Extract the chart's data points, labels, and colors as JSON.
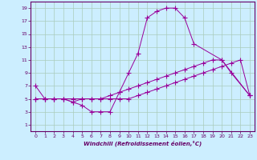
{
  "xlabel": "Windchill (Refroidissement éolien,°C)",
  "bg_color": "#cceeff",
  "line_color": "#990099",
  "grid_color": "#aaccbb",
  "xlim": [
    -0.5,
    23.5
  ],
  "ylim": [
    0,
    20
  ],
  "xticks": [
    0,
    1,
    2,
    3,
    4,
    5,
    6,
    7,
    8,
    9,
    10,
    11,
    12,
    13,
    14,
    15,
    16,
    17,
    18,
    19,
    20,
    21,
    22,
    23
  ],
  "yticks": [
    1,
    3,
    5,
    7,
    9,
    11,
    13,
    15,
    17,
    19
  ],
  "curve1_x": [
    0,
    1,
    2,
    3,
    4,
    5,
    6,
    7,
    8,
    9,
    10,
    11,
    12,
    13,
    14,
    15,
    16,
    17,
    20,
    21,
    23
  ],
  "curve1_y": [
    7,
    5,
    5,
    5,
    4.5,
    4,
    3,
    3,
    3,
    6,
    9,
    12,
    17.5,
    18.5,
    19,
    19,
    17.5,
    13.5,
    11,
    9,
    5.5
  ],
  "curve2_x": [
    0,
    1,
    2,
    3,
    4,
    5,
    6,
    7,
    8,
    9,
    10,
    11,
    12,
    13,
    14,
    15,
    16,
    17,
    18,
    19,
    20,
    23
  ],
  "curve2_y": [
    5,
    5,
    5,
    5,
    4.5,
    5,
    5,
    5,
    5.5,
    6,
    6.5,
    7,
    7.5,
    8,
    8.5,
    9,
    9.5,
    10,
    10.5,
    11,
    11,
    5.5
  ],
  "curve3_x": [
    0,
    1,
    2,
    3,
    4,
    5,
    6,
    7,
    8,
    9,
    10,
    11,
    12,
    13,
    14,
    15,
    16,
    17,
    18,
    19,
    20,
    21,
    22,
    23
  ],
  "curve3_y": [
    5,
    5,
    5,
    5,
    5,
    5,
    5,
    5,
    5,
    5,
    5,
    5.5,
    6,
    6.5,
    7,
    7.5,
    8,
    8.5,
    9,
    9.5,
    10,
    10.5,
    11,
    5.5
  ]
}
